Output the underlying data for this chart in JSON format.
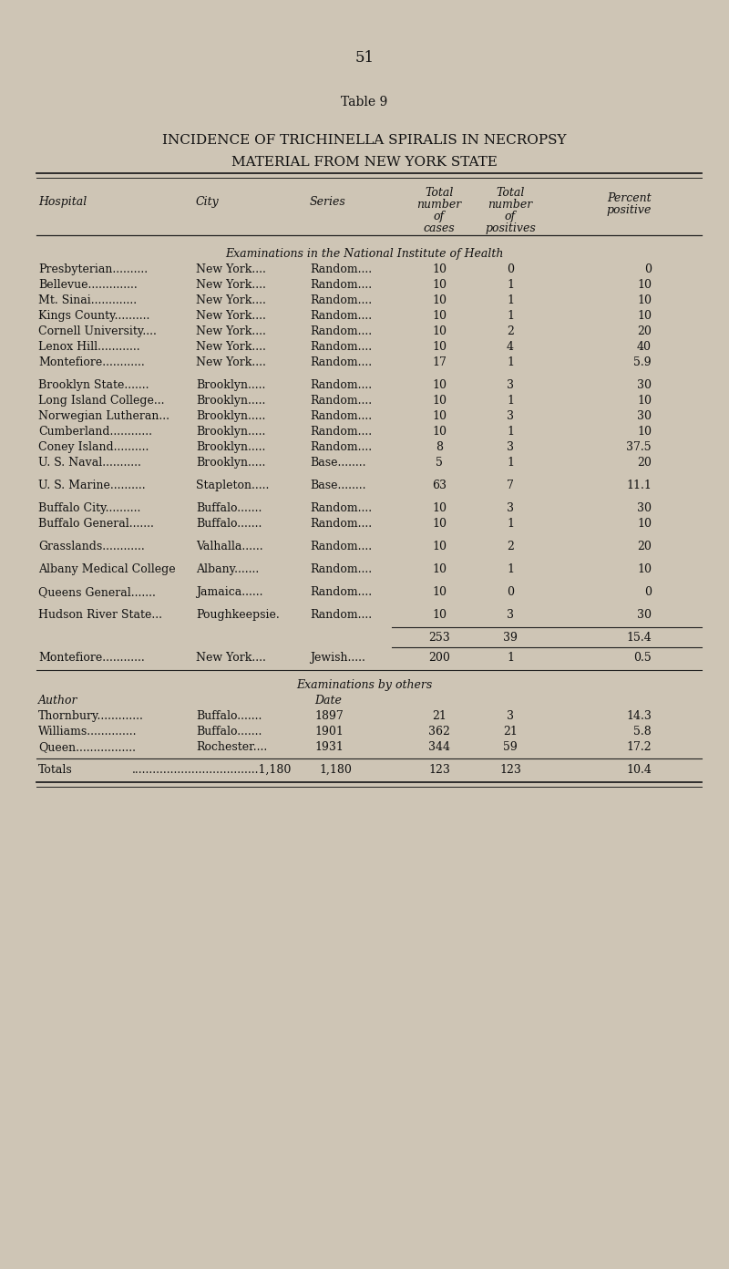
{
  "page_number": "51",
  "table_label": "Table 9",
  "title_line1": "INCIDENCE OF TRICHINELLA SPIRALIS IN NECROPSY",
  "title_line2": "MATERIAL FROM NEW YORK STATE",
  "bg_color": "#cec5b5",
  "section1_header": "Examinations in the National Institute of Health",
  "section1_rows": [
    [
      "Presbyterian..........",
      "New York....",
      "Random....",
      "10",
      "0",
      "0"
    ],
    [
      "Bellevue..............",
      "New York....",
      "Random....",
      "10",
      "1",
      "10"
    ],
    [
      "Mt. Sinai.............",
      "New York....",
      "Random....",
      "10",
      "1",
      "10"
    ],
    [
      "Kings County..........",
      "New York....",
      "Random....",
      "10",
      "1",
      "10"
    ],
    [
      "Cornell University....",
      "New York....",
      "Random....",
      "10",
      "2",
      "20"
    ],
    [
      "Lenox Hill............",
      "New York....",
      "Random....",
      "10",
      "4",
      "40"
    ],
    [
      "Montefiore............",
      "New York....",
      "Random....",
      "17",
      "1",
      "5.9"
    ]
  ],
  "section2_rows": [
    [
      "Brooklyn State.......",
      "Brooklyn.....",
      "Random....",
      "10",
      "3",
      "30"
    ],
    [
      "Long Island College...",
      "Brooklyn.....",
      "Random....",
      "10",
      "1",
      "10"
    ],
    [
      "Norwegian Lutheran...",
      "Brooklyn.....",
      "Random....",
      "10",
      "3",
      "30"
    ],
    [
      "Cumberland............",
      "Brooklyn.....",
      "Random....",
      "10",
      "1",
      "10"
    ],
    [
      "Coney Island..........",
      "Brooklyn.....",
      "Random....",
      "8",
      "3",
      "37.5"
    ],
    [
      "U. S. Naval...........",
      "Brooklyn.....",
      "Base........",
      "5",
      "1",
      "20"
    ]
  ],
  "section3_rows": [
    [
      "U. S. Marine..........",
      "Stapleton.....",
      "Base........",
      "63",
      "7",
      "11.1"
    ]
  ],
  "section4_rows": [
    [
      "Buffalo City..........",
      "Buffalo.......",
      "Random....",
      "10",
      "3",
      "30"
    ],
    [
      "Buffalo General.......",
      "Buffalo.......",
      "Random....",
      "10",
      "1",
      "10"
    ]
  ],
  "section5_rows": [
    [
      "Grasslands............",
      "Valhalla......",
      "Random....",
      "10",
      "2",
      "20"
    ]
  ],
  "section6_rows": [
    [
      "Albany Medical College",
      "Albany.......",
      "Random....",
      "10",
      "1",
      "10"
    ]
  ],
  "section7_rows": [
    [
      "Queens General.......",
      "Jamaica......",
      "Random....",
      "10",
      "0",
      "0"
    ]
  ],
  "section8_rows": [
    [
      "Hudson River State...",
      "Poughkeepsie.",
      "Random....",
      "10",
      "3",
      "30"
    ]
  ],
  "subtotal": [
    "253",
    "39",
    "15.4"
  ],
  "montefiore_jewish": [
    "Montefiore............",
    "New York....",
    "Jewish.....",
    "200",
    "1",
    "0.5"
  ],
  "by_others_header": "Examinations by others",
  "author_label": "Author",
  "date_label": "Date",
  "by_others_rows": [
    [
      "Thornbury.............",
      "Buffalo.......",
      "1897",
      "21",
      "3",
      "14.3"
    ],
    [
      "Williams..............",
      "Buffalo.......",
      "1901",
      "362",
      "21",
      "5.8"
    ],
    [
      "Queen.................",
      "Rochester....",
      "1931",
      "344",
      "59",
      "17.2"
    ]
  ],
  "totals": [
    "1,180",
    "123",
    "10.4"
  ]
}
